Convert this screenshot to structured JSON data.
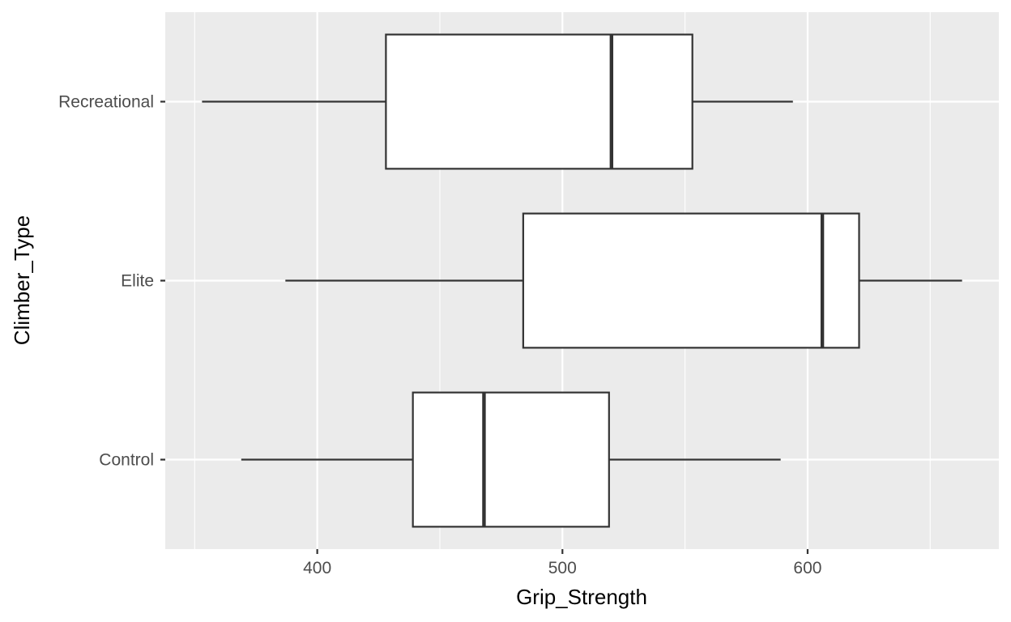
{
  "chart_data": {
    "type": "boxplot",
    "orientation": "horizontal",
    "xlabel": "Grip_Strength",
    "ylabel": "Climber_Type",
    "xlim": [
      338,
      678
    ],
    "x_ticks": [
      400,
      500,
      600
    ],
    "grid": true,
    "panel_background": "#ebebeb",
    "grid_color": "#ffffff",
    "box_fill": "#ffffff",
    "box_stroke": "#333333",
    "categories": [
      "Control",
      "Elite",
      "Recreational"
    ],
    "series": [
      {
        "name": "Control",
        "whisker_low": 369,
        "q1": 439,
        "median": 468,
        "q3": 519,
        "whisker_high": 589
      },
      {
        "name": "Elite",
        "whisker_low": 387,
        "q1": 484,
        "median": 606,
        "q3": 621,
        "whisker_high": 663
      },
      {
        "name": "Recreational",
        "whisker_low": 353,
        "q1": 428,
        "median": 520,
        "q3": 553,
        "whisker_high": 594
      }
    ]
  }
}
